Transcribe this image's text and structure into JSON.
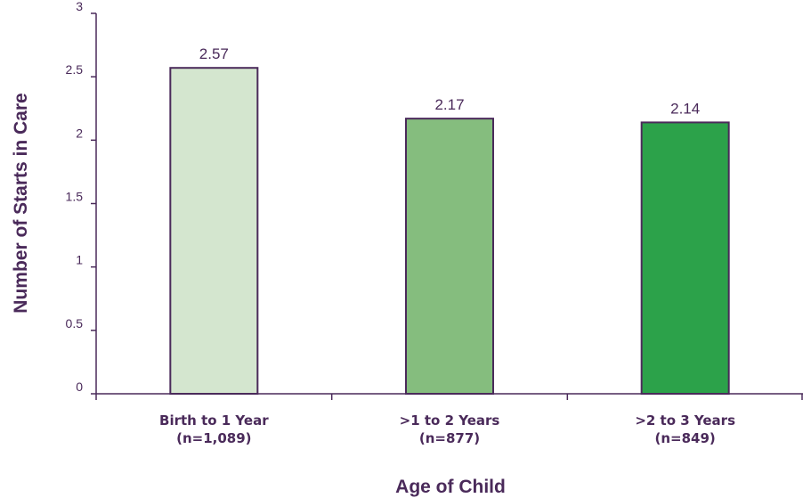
{
  "chart_data": {
    "type": "bar",
    "categories": [
      [
        "Birth to 1 Year",
        "(n=1,089)"
      ],
      [
        ">1 to 2 Years",
        "(n=877)"
      ],
      [
        ">2 to 3 Years",
        "(n=849)"
      ]
    ],
    "values": [
      2.57,
      2.17,
      2.14
    ],
    "data_labels": [
      "2.57",
      "2.17",
      "2.14"
    ],
    "bar_colors": [
      "#d4e6cf",
      "#85bd7e",
      "#2ca24a"
    ],
    "xlabel": "Age of Child",
    "ylabel": "Number of Starts in Care",
    "ylim": [
      0,
      3
    ],
    "yticks": [
      0,
      0.5,
      1,
      1.5,
      2,
      2.5,
      3
    ],
    "ytick_labels": [
      "0",
      "0.5",
      "1",
      "1.5",
      "2",
      "2.5",
      "3"
    ],
    "grid": false,
    "legend": "none"
  }
}
